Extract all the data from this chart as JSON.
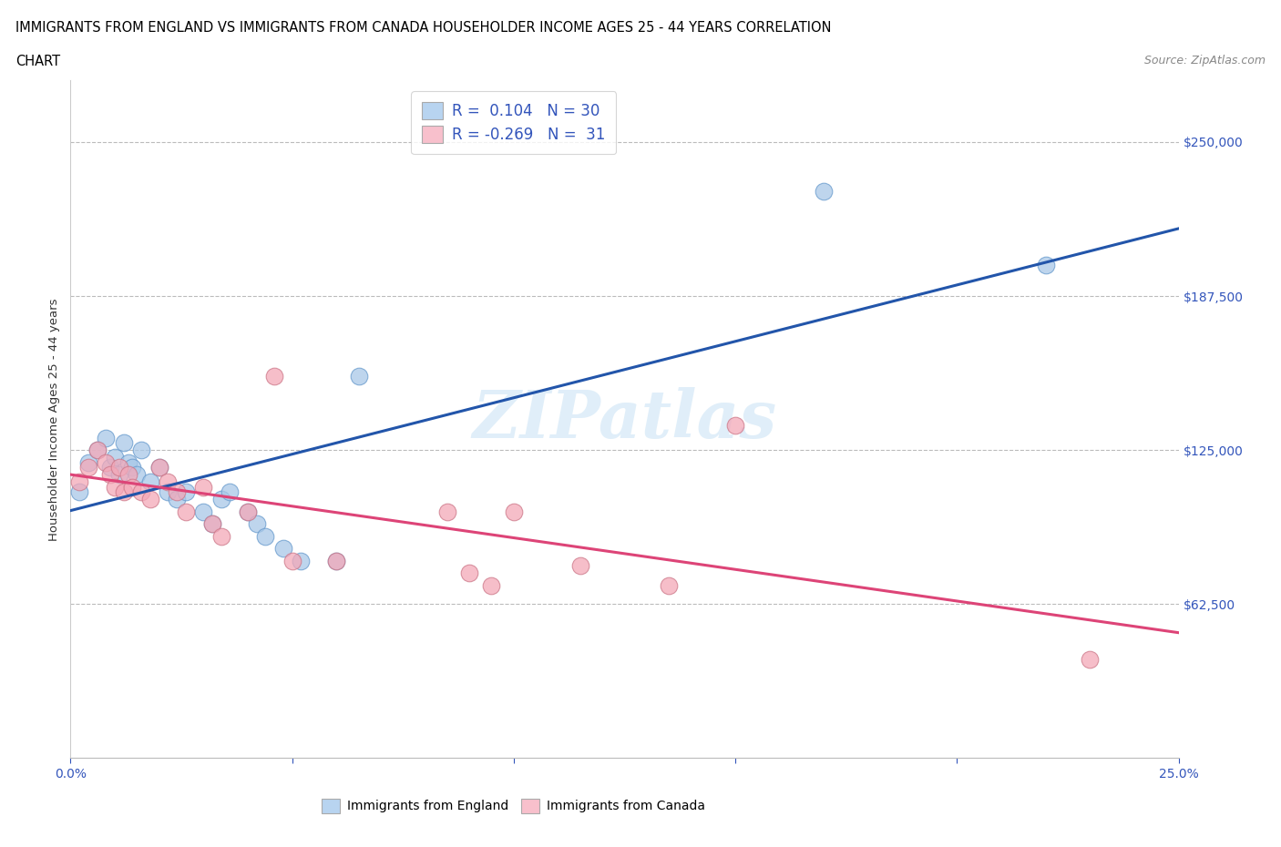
{
  "title_line1": "IMMIGRANTS FROM ENGLAND VS IMMIGRANTS FROM CANADA HOUSEHOLDER INCOME AGES 25 - 44 YEARS CORRELATION",
  "title_line2": "CHART",
  "source": "Source: ZipAtlas.com",
  "ylabel": "Householder Income Ages 25 - 44 years",
  "xlim": [
    0.0,
    0.25
  ],
  "ylim": [
    0,
    275000
  ],
  "xticks": [
    0.0,
    0.05,
    0.1,
    0.15,
    0.2,
    0.25
  ],
  "xtick_labels": [
    "0.0%",
    "",
    "",
    "",
    "",
    "25.0%"
  ],
  "ytick_labels": [
    "$62,500",
    "$125,000",
    "$187,500",
    "$250,000"
  ],
  "ytick_values": [
    62500,
    125000,
    187500,
    250000
  ],
  "hlines": [
    62500,
    125000,
    187500,
    250000
  ],
  "england_color": "#a8c8e8",
  "england_edge": "#6699cc",
  "canada_color": "#f4a8b8",
  "canada_edge": "#cc7788",
  "R_england": 0.104,
  "N_england": 30,
  "R_canada": -0.269,
  "N_canada": 31,
  "england_x": [
    0.002,
    0.004,
    0.006,
    0.008,
    0.009,
    0.01,
    0.011,
    0.012,
    0.013,
    0.014,
    0.015,
    0.016,
    0.018,
    0.02,
    0.022,
    0.024,
    0.026,
    0.03,
    0.032,
    0.034,
    0.036,
    0.04,
    0.042,
    0.044,
    0.048,
    0.052,
    0.06,
    0.065,
    0.17,
    0.22
  ],
  "england_y": [
    108000,
    120000,
    125000,
    130000,
    118000,
    122000,
    115000,
    128000,
    120000,
    118000,
    115000,
    125000,
    112000,
    118000,
    108000,
    105000,
    108000,
    100000,
    95000,
    105000,
    108000,
    100000,
    95000,
    90000,
    85000,
    80000,
    80000,
    155000,
    230000,
    200000
  ],
  "canada_x": [
    0.002,
    0.004,
    0.006,
    0.008,
    0.009,
    0.01,
    0.011,
    0.012,
    0.013,
    0.014,
    0.016,
    0.018,
    0.02,
    0.022,
    0.024,
    0.026,
    0.03,
    0.032,
    0.034,
    0.04,
    0.046,
    0.05,
    0.06,
    0.085,
    0.09,
    0.095,
    0.1,
    0.115,
    0.135,
    0.15,
    0.23
  ],
  "canada_y": [
    112000,
    118000,
    125000,
    120000,
    115000,
    110000,
    118000,
    108000,
    115000,
    110000,
    108000,
    105000,
    118000,
    112000,
    108000,
    100000,
    110000,
    95000,
    90000,
    100000,
    155000,
    80000,
    80000,
    100000,
    75000,
    70000,
    100000,
    78000,
    70000,
    135000,
    40000
  ],
  "watermark": "ZIPatlas",
  "legend_box_england_color": "#b8d4f0",
  "legend_box_canada_color": "#f8c0cc",
  "england_line_color": "#2255aa",
  "canada_line_color": "#dd4477",
  "background_color": "#ffffff",
  "marker_size": 180,
  "marker_alpha": 0.75
}
